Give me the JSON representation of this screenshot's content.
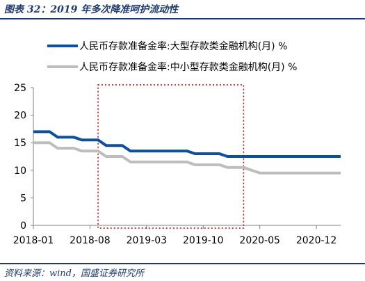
{
  "figure": {
    "title": "图表 32：2019 年多次降准呵护流动性",
    "source": "资料来源：wind，国盛证券研究所"
  },
  "colors": {
    "brand": "#1f3b70",
    "series_large": "#0d4fa1",
    "series_small": "#bdbdbd",
    "highlight": "#c00000"
  },
  "chart_data": {
    "type": "line",
    "x_ticks": [
      "2018-01",
      "2018-08",
      "2019-03",
      "2019-10",
      "2020-05",
      "2020-12"
    ],
    "ylim": [
      0,
      25
    ],
    "y_ticks": [
      0,
      5,
      10,
      15,
      20,
      25
    ],
    "xlim": [
      "2018-01",
      "2021-03"
    ],
    "grid": false,
    "legend_position": "top",
    "highlight_box": {
      "from": "2018-09",
      "to": "2020-03",
      "style": "dotted"
    },
    "series": [
      {
        "name": "人民币存款准备金率:大型存款类金融机构(月) %",
        "x": [
          "2018-01",
          "2018-03",
          "2018-04",
          "2018-06",
          "2018-07",
          "2018-08",
          "2018-09",
          "2018-10",
          "2018-12",
          "2019-01",
          "2019-02",
          "2019-04",
          "2019-06",
          "2019-08",
          "2019-09",
          "2019-10",
          "2019-12",
          "2020-01",
          "2020-03",
          "2020-05",
          "2020-08",
          "2020-12",
          "2021-03"
        ],
        "y": [
          17.0,
          17.0,
          16.0,
          16.0,
          15.5,
          15.5,
          15.5,
          14.5,
          14.5,
          13.5,
          13.5,
          13.5,
          13.5,
          13.5,
          13.0,
          13.0,
          13.0,
          12.5,
          12.5,
          12.5,
          12.5,
          12.5,
          12.5
        ]
      },
      {
        "name": "人民币存款准备金率:中小型存款类金融机构(月) %",
        "x": [
          "2018-01",
          "2018-03",
          "2018-04",
          "2018-06",
          "2018-07",
          "2018-08",
          "2018-09",
          "2018-10",
          "2018-12",
          "2019-01",
          "2019-02",
          "2019-04",
          "2019-06",
          "2019-08",
          "2019-09",
          "2019-10",
          "2019-12",
          "2020-01",
          "2020-03",
          "2020-04",
          "2020-05",
          "2020-08",
          "2020-12",
          "2021-03"
        ],
        "y": [
          15.0,
          15.0,
          14.0,
          14.0,
          13.5,
          13.5,
          13.5,
          12.5,
          12.5,
          11.5,
          11.5,
          11.5,
          11.5,
          11.5,
          11.0,
          11.0,
          11.0,
          10.5,
          10.5,
          10.0,
          9.5,
          9.5,
          9.5,
          9.5
        ]
      }
    ]
  }
}
